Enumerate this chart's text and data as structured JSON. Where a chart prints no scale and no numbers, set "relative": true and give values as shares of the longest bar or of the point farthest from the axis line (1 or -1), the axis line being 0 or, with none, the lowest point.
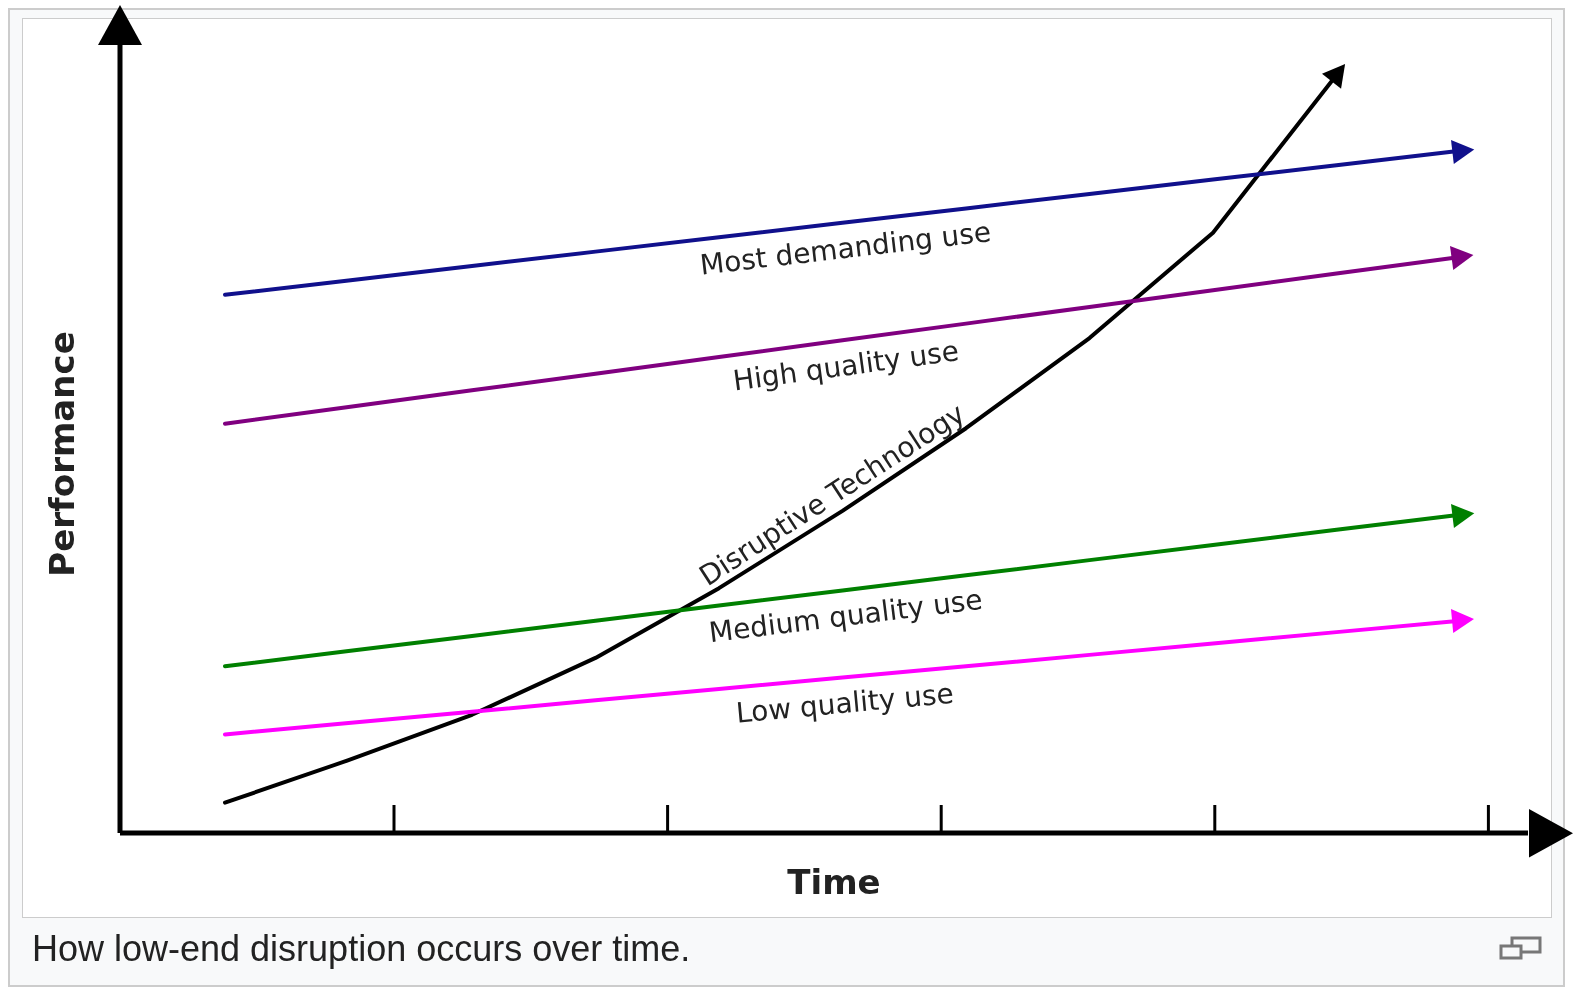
{
  "chart_data": {
    "type": "line",
    "relative": true,
    "xlabel": "Time",
    "ylabel": "Performance",
    "categories": [
      null,
      null,
      null,
      null,
      null,
      null,
      null,
      null,
      null,
      null,
      null
    ],
    "legend": false,
    "marker": "none",
    "line_style": "solid",
    "series": [
      {
        "name": "Most demanding use",
        "color": "#10108c",
        "values": [
          0.71,
          0.729,
          0.748,
          0.767,
          0.786,
          0.805,
          0.824,
          0.843,
          0.862,
          0.881,
          0.9
        ]
      },
      {
        "name": "High quality use",
        "color": "#800080",
        "values": [
          0.54,
          0.562,
          0.584,
          0.606,
          0.628,
          0.65,
          0.672,
          0.694,
          0.716,
          0.738,
          0.76
        ]
      },
      {
        "name": "Medium quality use",
        "color": "#008000",
        "values": [
          0.22,
          0.24,
          0.26,
          0.28,
          0.3,
          0.32,
          0.34,
          0.36,
          0.38,
          0.4,
          0.42
        ]
      },
      {
        "name": "Low quality use",
        "color": "#ff00ff",
        "values": [
          0.13,
          0.145,
          0.16,
          0.175,
          0.19,
          0.205,
          0.22,
          0.235,
          0.25,
          0.265,
          0.28
        ]
      },
      {
        "name": "Disruptive Technology",
        "color": "#000000",
        "values": [
          0.04,
          0.096,
          0.156,
          0.231,
          0.323,
          0.425,
          0.534,
          0.653,
          0.792,
          1,
          null
        ]
      }
    ],
    "annotations": [
      "How low-end disruption occurs over time."
    ]
  }
}
